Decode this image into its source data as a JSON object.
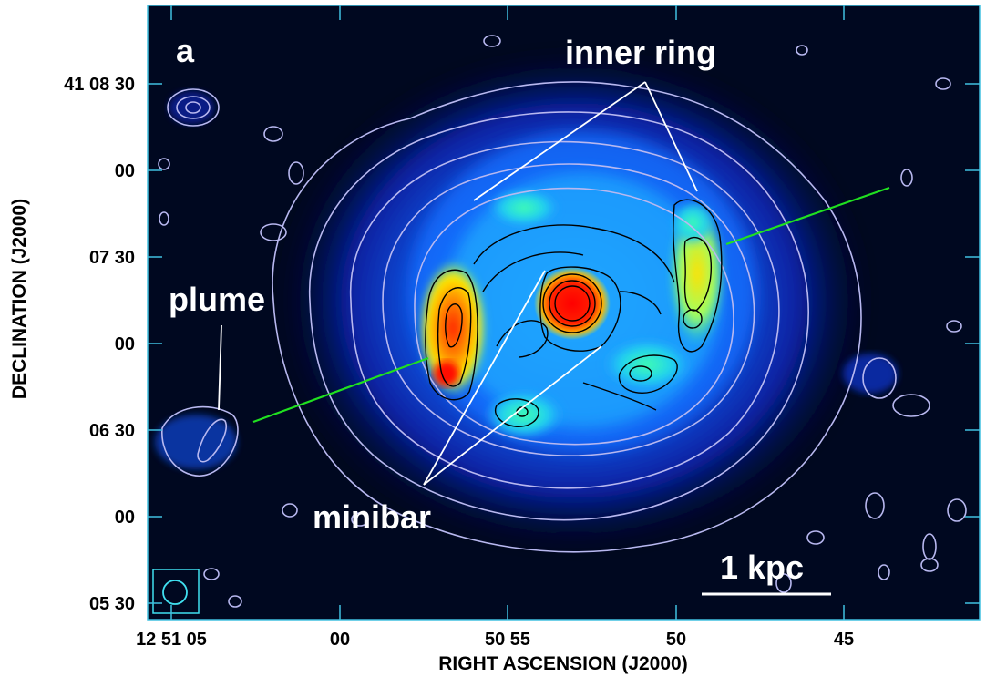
{
  "panel_label": "a",
  "annotations": {
    "inner_ring": "inner ring",
    "plume": "plume",
    "minibar": "minibar",
    "scale_bar": "1 kpc"
  },
  "axes": {
    "xlabel": "RIGHT ASCENSION (J2000)",
    "ylabel": "DECLINATION (J2000)",
    "x_ticks": [
      "12 51 05",
      "00",
      "50 55",
      "50",
      "45"
    ],
    "y_ticks": [
      "41 08 30",
      "00",
      "07 30",
      "00",
      "06 30",
      "00",
      "05 30"
    ]
  },
  "colors": {
    "background": "#000820",
    "frame": "#40c0e0",
    "contour_outer": "#b8b8f0",
    "contour_inner": "#000000",
    "guide_line": "#ffffff",
    "major_axis_line": "#20e020",
    "beam": "#40e0f0"
  },
  "visual_elements": [
    "gas-emission-map",
    "contours",
    "beam-marker",
    "scale-bar",
    "major-axis-line"
  ]
}
